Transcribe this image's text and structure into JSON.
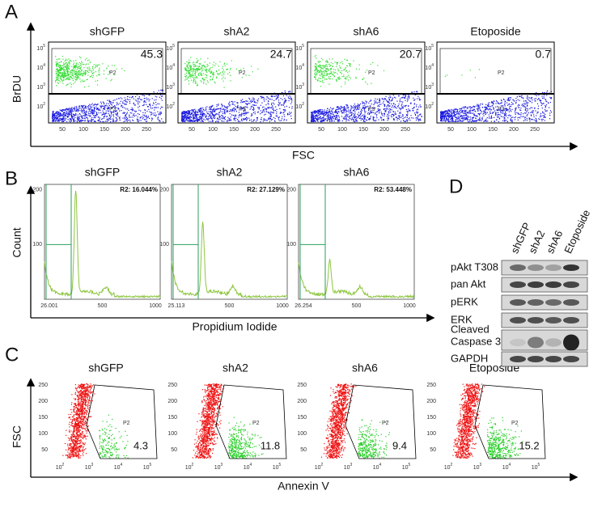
{
  "panel_a": {
    "letter": "A",
    "y_label": "BrDU",
    "x_label": "FSC",
    "y_tick_base": "10",
    "y_tick_exponents": [
      "5",
      "4",
      "3",
      "2"
    ],
    "x_ticks": [
      "50",
      "100",
      "150",
      "200",
      "250"
    ],
    "gates": [
      "P2",
      "P3"
    ],
    "plots": [
      {
        "title": "shGFP",
        "percent": "45.3"
      },
      {
        "title": "shA2",
        "percent": "24.7"
      },
      {
        "title": "shA6",
        "percent": "20.7"
      },
      {
        "title": "Etoposide",
        "percent": "0.7"
      }
    ]
  },
  "panel_b": {
    "letter": "B",
    "y_label": "Count",
    "x_label": "Propidium Iodide",
    "y_ticks": [
      "200",
      "100"
    ],
    "plots": [
      {
        "title": "shGFP",
        "region": "R2: 16.044%",
        "x_ticks": [
          "26.001",
          "500",
          "1000"
        ]
      },
      {
        "title": "shA2",
        "region": "R2: 27.129%",
        "x_ticks": [
          "25.113",
          "500",
          "1000"
        ]
      },
      {
        "title": "shA6",
        "region": "R2: 53.448%",
        "x_ticks": [
          "26.254",
          "500",
          "1000"
        ]
      }
    ]
  },
  "panel_c": {
    "letter": "C",
    "y_label": "FSC",
    "x_label": "Annexin V",
    "y_ticks": [
      "250",
      "200",
      "150",
      "100",
      "50"
    ],
    "x_tick_base": "10",
    "x_tick_exponents": [
      "2",
      "3",
      "4",
      "5"
    ],
    "gate": "P2",
    "plots": [
      {
        "title": "shGFP",
        "percent": "4.3"
      },
      {
        "title": "shA2",
        "percent": "11.8"
      },
      {
        "title": "shA6",
        "percent": "9.4"
      },
      {
        "title": "Etoposide",
        "percent": "15.2"
      }
    ]
  },
  "panel_d": {
    "letter": "D",
    "lanes": [
      "shGFP",
      "shA2",
      "shA6",
      "Etoposide"
    ],
    "rows": [
      {
        "lines": [
          "pAkt T308"
        ]
      },
      {
        "lines": [
          "pan Akt"
        ]
      },
      {
        "lines": [
          "pERK"
        ]
      },
      {
        "lines": [
          "ERK"
        ]
      },
      {
        "lines": [
          "Cleaved",
          "Caspase 3"
        ]
      },
      {
        "lines": [
          "GAPDH"
        ]
      }
    ]
  }
}
